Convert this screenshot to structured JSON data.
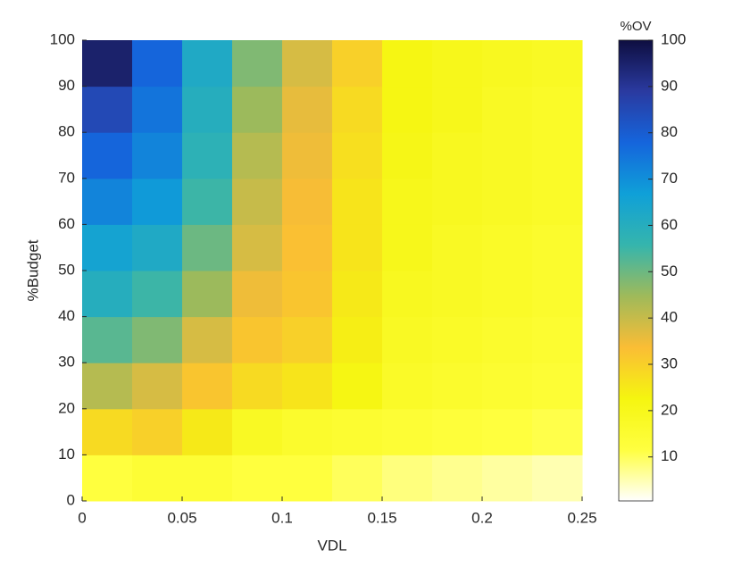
{
  "chart_data": {
    "type": "heatmap",
    "x_label": "VDL",
    "y_label": "%Budget",
    "colorbar_title": "%OV",
    "x": [
      0.0125,
      0.0375,
      0.0625,
      0.0875,
      0.1125,
      0.1375,
      0.1625,
      0.1875,
      0.2125,
      0.2375
    ],
    "y": [
      5,
      15,
      25,
      35,
      45,
      55,
      65,
      75,
      85,
      95
    ],
    "values": [
      [
        12,
        14,
        14,
        12,
        12,
        10,
        8,
        7,
        6,
        5
      ],
      [
        28,
        30,
        25,
        18,
        16,
        15,
        14,
        13,
        12,
        11
      ],
      [
        42,
        38,
        32,
        28,
        26,
        22,
        17,
        16,
        15,
        14
      ],
      [
        52,
        48,
        38,
        32,
        30,
        24,
        18,
        17,
        16,
        15
      ],
      [
        60,
        55,
        45,
        35,
        32,
        25,
        19,
        18,
        17,
        16
      ],
      [
        65,
        62,
        50,
        38,
        33,
        26,
        20,
        18,
        17,
        16
      ],
      [
        72,
        68,
        55,
        40,
        34,
        26,
        20,
        19,
        18,
        17
      ],
      [
        78,
        72,
        58,
        42,
        35,
        27,
        21,
        19,
        18,
        17
      ],
      [
        85,
        75,
        60,
        45,
        36,
        28,
        22,
        20,
        18,
        17
      ],
      [
        95,
        78,
        62,
        48,
        38,
        30,
        22,
        20,
        19,
        18
      ]
    ],
    "xlim": [
      0,
      0.25
    ],
    "ylim": [
      0,
      100
    ],
    "xticks": [
      0,
      0.05,
      0.1,
      0.15,
      0.2,
      0.25
    ],
    "yticks": [
      0,
      10,
      20,
      30,
      40,
      50,
      60,
      70,
      80,
      90,
      100
    ],
    "clim": [
      0.5,
      100
    ],
    "cticks": [
      10,
      20,
      30,
      40,
      50,
      60,
      70,
      80,
      90,
      100
    ],
    "colormap": [
      "#ffffff",
      "#ffff40",
      "#f5f510",
      "#fabd35",
      "#9fba5a",
      "#35b5ad",
      "#0fa0d8",
      "#1565dc",
      "#2a3aa0",
      "#0e0e40"
    ]
  }
}
